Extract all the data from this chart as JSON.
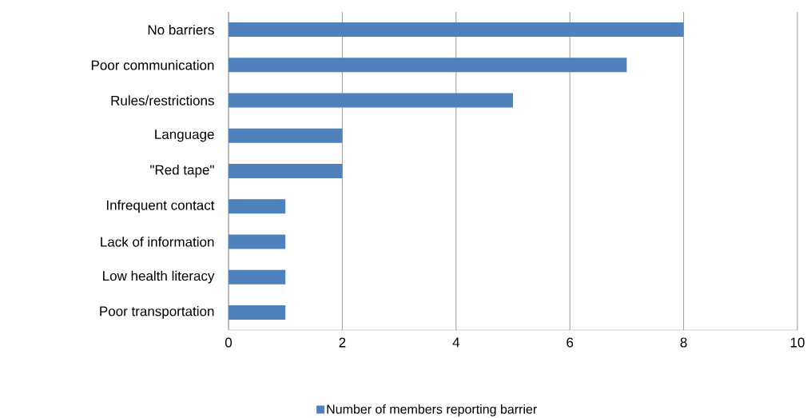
{
  "chart_data": {
    "type": "bar",
    "orientation": "horizontal",
    "categories": [
      "No barriers",
      "Poor communication",
      "Rules/restrictions",
      "Language",
      "\"Red tape\"",
      "Infrequent contact",
      "Lack of information",
      "Low health literacy",
      "Poor transportation"
    ],
    "series": [
      {
        "name": "Number of members reporting barrier",
        "color": "#4f81bd",
        "values": [
          8,
          7,
          5,
          2,
          2,
          1,
          1,
          1,
          1
        ]
      }
    ],
    "xlim": [
      0,
      10
    ],
    "xticks": [
      0,
      2,
      4,
      6,
      8,
      10
    ],
    "grid": "x",
    "legend": "bottom"
  }
}
